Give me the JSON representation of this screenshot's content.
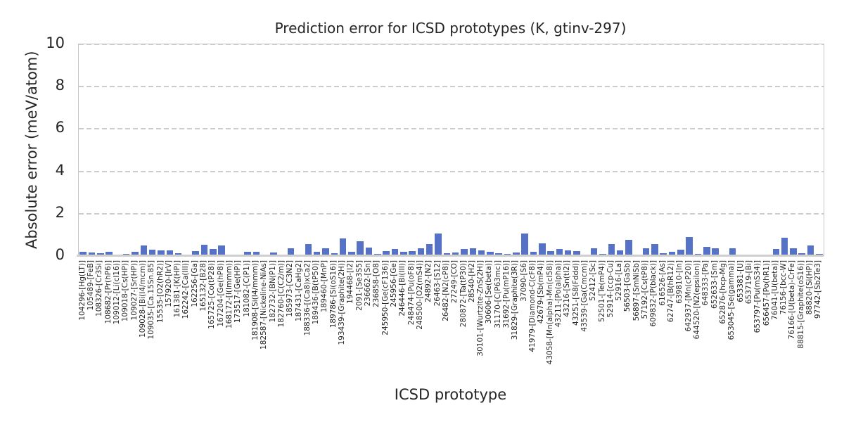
{
  "figure": {
    "title": "Prediction error for ICSD prototypes (K, gtinv-297)"
  },
  "style": {
    "bar_color": "#5572c7",
    "spine_color": "#c8c8c8",
    "grid_color": "#cccccc",
    "text_color": "#262626",
    "background": "#ffffff"
  },
  "chart_data": {
    "type": "bar",
    "title": "Prediction error for ICSD prototypes (K, gtinv-297)",
    "xlabel": "ICSD prototype",
    "ylabel": "Absolute error (meV/atom)",
    "ylim": [
      0,
      10
    ],
    "yticks": [
      0,
      2,
      4,
      6,
      8,
      10
    ],
    "grid": "horizontal-dashed",
    "legend_position": "none",
    "categories": [
      "104296-[Hg(LT)]",
      "105489-[FeB]",
      "108326-[Cr3Si]",
      "108682-[Pr(hP6)]",
      "109012-[Li(cI16)]",
      "109018-[Cs(HP)]",
      "109027-[Sr(HP)]",
      "109028-[Bi(I4/mcm)]",
      "109035-[Ca.15Sn.85]",
      "15535-[O2(hR2)]",
      "157920-[IrV]",
      "161381-[K(HP)]",
      "162242-[Ca(III)]",
      "162256-[Ga]",
      "165132-[B28]",
      "165725-[Co(tP28)]",
      "167204-[Ge(hP8)]",
      "168172-[I(Immm)]",
      "173517-[Ge(HP)]",
      "181082-[C(P1)]",
      "181908-[Si(I4/mmm)]",
      "182587-[Nickeline-NiAs]",
      "182732-[BN(P1)]",
      "182760-[C(C2/m)]",
      "185973-[C3N2]",
      "187431-[CaHg2]",
      "188336-[(Ca8)xCa2]",
      "189436-[B(tP50)]",
      "189460-[MnP]",
      "189786-[Si(oS16)]",
      "193439-[Graphite(2H)]",
      "194468-[I2]",
      "2091-[Se3S5]",
      "236662-[Sn]",
      "236858-[O8]",
      "245950-[Ge(cF136)]",
      "245956-[Ge]",
      "246446-[Bi(III)]",
      "248474-[Pu(oF8)]",
      "248500-[O2(mS4)]",
      "24892-[N2]",
      "26463-[S12]",
      "26482-[N2(cP8)]",
      "27249-[CO]",
      "280872-[Ta(tP30)]",
      "28540-[H2]",
      "30101-[Wurtzite-ZnS(2H)]",
      "30606-[Se(beta)]",
      "31170-[C(P63mc)]",
      "31692-[Pu(mP16)]",
      "31829-[Graphite(3R)]",
      "37090-[S6]",
      "41979-[Diamond-C(cF8)]",
      "42679-[Sb(mP4)]",
      "43058-[Mn(alpha)-Mn(cI58)]",
      "43211-[Po(alpha)]",
      "43216-[Sn(tI2)]",
      "43251-[S8(Fddd)]",
      "43539-[Ga(Cmcm)]",
      "52412-[Sc]",
      "52501-[Te(mP4)]",
      "52914-[ccp-Cu]",
      "52916-[La]",
      "56503-[GaSb]",
      "56897-[SmNiSb]",
      "57192-[Cs(tP8)]",
      "609832-[P(black)]",
      "616526-[As]",
      "62747-[B(hR12)]",
      "639810-[In]",
      "642937-[Mn(cP20)]",
      "644520-[N2(epsilon)]",
      "648333-[Pa]",
      "652633-[Sm]",
      "652876-[hcp-Mg]",
      "653045-[Se(gamma)]",
      "653381-[U]",
      "653719-[Bi]",
      "653797-[Pu(mS34)]",
      "656457-[Po(hR1)]",
      "76041-[U(beta)]",
      "76156-[bcc-W]",
      "76166-[U(beta)-CrFe]",
      "88815-[Graphite(oS16)]",
      "88820-[Si(HP)]",
      "97742-[Sb2Te3]"
    ],
    "values": [
      0.21,
      0.15,
      0.14,
      0.21,
      0.02,
      0.11,
      0.19,
      0.5,
      0.31,
      0.28,
      0.25,
      0.12,
      0.04,
      0.22,
      0.54,
      0.34,
      0.51,
      0.08,
      0.01,
      0.19,
      0.2,
      0.01,
      0.15,
      0.01,
      0.37,
      0.06,
      0.55,
      0.21,
      0.35,
      0.13,
      0.84,
      0.19,
      0.69,
      0.4,
      0.1,
      0.23,
      0.33,
      0.19,
      0.23,
      0.38,
      0.57,
      1.06,
      0.12,
      0.15,
      0.33,
      0.35,
      0.28,
      0.21,
      0.13,
      0.1,
      0.17,
      1.06,
      0.2,
      0.6,
      0.22,
      0.32,
      0.26,
      0.23,
      0.01,
      0.38,
      0.11,
      0.58,
      0.25,
      0.75,
      0.01,
      0.35,
      0.58,
      0.13,
      0.2,
      0.31,
      0.89,
      0.09,
      0.42,
      0.36,
      0.01,
      0.38,
      0.01,
      0.01,
      0.04,
      0.01,
      0.34,
      0.86,
      0.36,
      0.14,
      0.5,
      0.11
    ]
  }
}
